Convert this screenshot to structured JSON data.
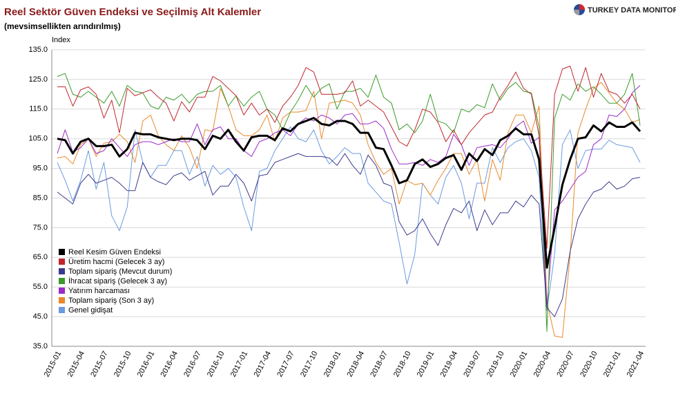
{
  "chart_data": {
    "type": "line",
    "title": "Reel Sektör Güven Endeksi ve Seçilmiş Alt Kalemler",
    "subtitle": "(mevsimsellikten arındırılmış)",
    "y_label": "Index",
    "logo": "TURKEY DATA MONITOR",
    "categories": [
      "2015-01",
      null,
      null,
      "2015-04",
      null,
      null,
      "2015-07",
      null,
      null,
      "2015-10",
      null,
      null,
      "2016-01",
      null,
      null,
      "2016-04",
      null,
      null,
      "2016-07",
      null,
      null,
      "2016-10",
      null,
      null,
      "2017-01",
      null,
      null,
      "2017-04",
      null,
      null,
      "2017-07",
      null,
      null,
      "2017-10",
      null,
      null,
      "2018-01",
      null,
      null,
      "2018-04",
      null,
      null,
      "2018-07",
      null,
      null,
      "2018-10",
      null,
      null,
      "2019-01",
      null,
      null,
      "2019-04",
      null,
      null,
      "2019-07",
      null,
      null,
      "2019-10",
      null,
      null,
      "2020-01",
      null,
      null,
      "2020-04",
      null,
      null,
      "2020-07",
      null,
      null,
      "2020-10",
      null,
      null,
      "2021-01",
      null,
      null,
      "2021-04"
    ],
    "series": [
      {
        "name": "Reel Kesim Güven Endeksi",
        "color": "#000000",
        "width": 3,
        "values": [
          105,
          104.5,
          100,
          104,
          105,
          102.5,
          102.5,
          103,
          99,
          101.5,
          107,
          106.5,
          106.5,
          105.5,
          105,
          104.5,
          105,
          105,
          104.5,
          101.5,
          106,
          105,
          108,
          104,
          101,
          105.5,
          106,
          106,
          104.5,
          108.5,
          107.5,
          110,
          111,
          112,
          110,
          109.5,
          111,
          111,
          110,
          107,
          107,
          102,
          101.5,
          96,
          90,
          91,
          96.5,
          98,
          95.5,
          96.5,
          98.5,
          99.5,
          94.5,
          100,
          97.5,
          101.5,
          99.5,
          104.5,
          106,
          108.5,
          106.5,
          106.5,
          98,
          61.5,
          75,
          89.5,
          98,
          105,
          105.5,
          109.5,
          107.5,
          110.5,
          109,
          109,
          110.5,
          107.5
        ]
      },
      {
        "name": "Üretim hacmi (Gelecek 3 ay)",
        "color": "#c0272d",
        "width": 1,
        "values": [
          122.5,
          122.5,
          116,
          121.5,
          122.5,
          120,
          112,
          118,
          107,
          122,
          119.5,
          120.5,
          121.5,
          119,
          117,
          111,
          117.5,
          114,
          119,
          119,
          126,
          124.5,
          122,
          119.5,
          113,
          117,
          113,
          115,
          110.5,
          116,
          119,
          123,
          129,
          127.5,
          120,
          120,
          120,
          120.5,
          124.5,
          116,
          118,
          116,
          114,
          109,
          104,
          102.5,
          108,
          115,
          114,
          110.5,
          104,
          108,
          103,
          107,
          110,
          113,
          114,
          119,
          123,
          127.5,
          122,
          120,
          106,
          68,
          120,
          128.5,
          129.5,
          121,
          129,
          119,
          127,
          121,
          120,
          117,
          120,
          115
        ]
      },
      {
        "name": "Toplam sipariş (Mevcut durum)",
        "color": "#3a3a8c",
        "width": 1,
        "values": [
          87,
          85,
          83,
          90,
          93,
          90,
          91,
          92,
          90,
          87.5,
          87.5,
          97,
          92,
          90.5,
          89.5,
          92.5,
          93.5,
          91,
          92.5,
          94,
          86,
          89,
          89,
          93,
          90,
          84,
          92.5,
          93,
          97,
          98,
          99,
          100,
          99,
          99,
          99,
          98.5,
          96,
          100,
          96,
          93,
          99.5,
          96,
          90,
          89,
          77,
          72.5,
          74,
          78,
          73,
          69,
          76,
          81.5,
          80,
          84,
          74,
          81,
          76,
          80,
          80,
          84,
          82,
          86,
          83,
          48,
          45,
          51,
          67,
          78,
          83,
          87,
          88,
          90.5,
          88,
          89,
          91.5,
          92
        ]
      },
      {
        "name": "İhracat sipariş (Gelecek 3 ay)",
        "color": "#3a9a2a",
        "width": 1,
        "values": [
          126,
          127,
          120,
          119,
          121,
          119,
          117,
          121,
          116,
          123,
          121,
          120.5,
          116,
          115,
          119,
          118,
          120,
          117,
          120,
          121,
          121,
          123,
          116,
          119.5,
          116,
          119,
          121,
          115,
          113,
          108,
          114,
          118,
          123,
          119,
          122,
          123.5,
          115,
          121,
          121,
          122,
          119,
          126.5,
          119,
          117,
          108,
          110,
          107,
          111,
          120,
          111,
          110,
          107,
          115,
          114,
          116.5,
          115.5,
          123.5,
          118,
          122,
          124,
          121,
          120.5,
          109,
          40,
          112,
          120,
          118,
          123.5,
          121,
          122.5,
          120,
          117,
          117,
          120,
          127,
          109.5
        ]
      },
      {
        "name": "Yatırım harcaması",
        "color": "#9a2ac8",
        "width": 1,
        "values": [
          100,
          108,
          100.5,
          102,
          105,
          100,
          101,
          105,
          102,
          99,
          103,
          104,
          104,
          103,
          104,
          105,
          104,
          104,
          110,
          103,
          108,
          109,
          105,
          105,
          101,
          99,
          104,
          105,
          107,
          108,
          106,
          110,
          112,
          111,
          113,
          112,
          110,
          113,
          113.5,
          110,
          110,
          111,
          108.5,
          101.5,
          96.5,
          96.5,
          97,
          96,
          98,
          97,
          99,
          106.5,
          103,
          96,
          102,
          102.5,
          103,
          102,
          105,
          109,
          111,
          103.5,
          105.5,
          48,
          81,
          84,
          88,
          92,
          94,
          103,
          105,
          113,
          112.5,
          115,
          120.5,
          123
        ]
      },
      {
        "name": "Toplam sipariş (Son 3 ay)",
        "color": "#e8892a",
        "width": 1,
        "values": [
          98.5,
          99,
          96.5,
          103,
          105,
          99,
          103.5,
          104,
          106.5,
          104,
          97,
          111,
          113,
          106,
          103,
          101,
          106,
          102,
          95,
          108,
          107.5,
          122,
          116,
          108,
          106,
          106,
          108,
          113,
          104,
          112,
          114,
          114,
          114.5,
          121,
          105,
          117,
          117.5,
          118,
          117,
          113,
          103,
          97,
          93,
          95,
          83,
          91,
          89.5,
          90,
          86,
          91,
          95,
          100,
          100,
          93,
          98,
          84,
          98,
          91,
          107,
          113,
          113,
          107,
          116,
          50,
          38.5,
          38,
          66,
          107,
          115,
          122,
          124,
          120.5,
          117,
          115,
          110.5,
          111.5
        ]
      },
      {
        "name": "Genel gidişat",
        "color": "#6a9ae0",
        "width": 1,
        "values": [
          97,
          91,
          84,
          91,
          101,
          88,
          97,
          79,
          74,
          82,
          108,
          97,
          92,
          96,
          96,
          101,
          101,
          93,
          99,
          89,
          96,
          93,
          95,
          92,
          82,
          74,
          94,
          95,
          101,
          105,
          109,
          105,
          104,
          108,
          101,
          96.5,
          99,
          102,
          100,
          100,
          90,
          87,
          84,
          83,
          70,
          56,
          66,
          90,
          86,
          83,
          92,
          96,
          90,
          78,
          90,
          90,
          102,
          97,
          102,
          104,
          105,
          101,
          92,
          47,
          66,
          103,
          108,
          95,
          101,
          101.5,
          101.5,
          104.5,
          103,
          102.5,
          102,
          97
        ]
      }
    ],
    "ylim": [
      35,
      135
    ],
    "yticks": [
      {
        "value": 35,
        "label": "35.0"
      },
      {
        "value": 45,
        "label": "45.0"
      },
      {
        "value": 55,
        "label": "55.0"
      },
      {
        "value": 65,
        "label": "65.0"
      },
      {
        "value": 75,
        "label": "75.0"
      },
      {
        "value": 85,
        "label": "85.0"
      },
      {
        "value": 95,
        "label": "95.0"
      },
      {
        "value": 105,
        "label": "105.0"
      },
      {
        "value": 115,
        "label": "115.0"
      },
      {
        "value": 125,
        "label": "125.0"
      },
      {
        "value": 135,
        "label": "135.0"
      }
    ],
    "grid": true,
    "legend": "lower left"
  }
}
